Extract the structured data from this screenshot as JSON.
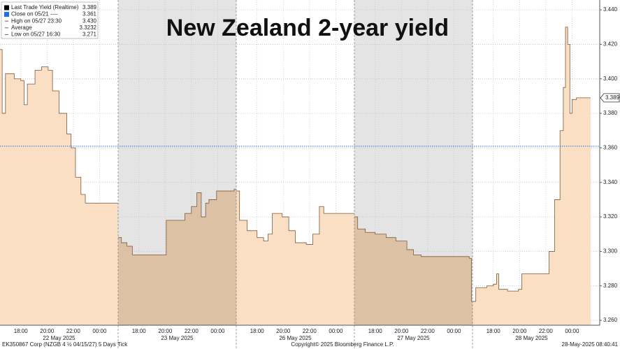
{
  "chart_data": {
    "type": "area",
    "title": "New Zealand 2-year yield",
    "legend": [
      {
        "name": "Last Trade Yield (Realtime)",
        "value": 3.389,
        "color": "#000000"
      },
      {
        "name": "Close on 05/21 ----",
        "value": 3.361,
        "color": "#1f6fe0"
      },
      {
        "name": "High on 05/27 23:30",
        "value": 3.43,
        "value_label": "3.430"
      },
      {
        "name": "Average",
        "value": 3.3232
      },
      {
        "name": "Low on 05/27 16:30",
        "value": 3.271
      }
    ],
    "ylim": [
      3.2572,
      3.4457
    ],
    "yticks": [
      {
        "value": 3.26,
        "label": "3.260"
      },
      {
        "value": 3.28,
        "label": "3.280"
      },
      {
        "value": 3.3,
        "label": "3.300"
      },
      {
        "value": 3.32,
        "label": "3.320"
      },
      {
        "value": 3.34,
        "label": "3.340"
      },
      {
        "value": 3.36,
        "label": "3.360"
      },
      {
        "value": 3.38,
        "label": "3.380"
      },
      {
        "value": 3.4,
        "label": "3.400"
      },
      {
        "value": 3.42,
        "label": "3.420"
      },
      {
        "value": 3.44,
        "label": "3.440"
      }
    ],
    "xlim": [
      "16:25",
      "01:25"
    ],
    "xticks": [
      "18:00",
      "20:00",
      "22:00",
      "00:00"
    ],
    "grid": true,
    "fill_color": "#fbdfc4",
    "shaded_fill_color": "#dcc1a4",
    "shade_color": "#e4e4e4",
    "line_color": "#7a5a3c",
    "days": [
      {
        "date": "22 May 2025",
        "shaded": false,
        "x": [
          "16:25",
          "16:35",
          "16:50",
          "17:30",
          "18:00",
          "18:15",
          "18:30",
          "19:05",
          "19:35",
          "20:05",
          "20:25",
          "20:55",
          "21:30",
          "21:50",
          "22:10",
          "22:35",
          "22:55",
          "01:20"
        ],
        "values": [
          3.417,
          3.38,
          3.403,
          3.4,
          3.399,
          3.385,
          3.397,
          3.405,
          3.407,
          3.405,
          3.393,
          3.38,
          3.368,
          3.36,
          3.343,
          3.333,
          3.328,
          3.328
        ]
      },
      {
        "date": "23 May 2025",
        "shaded": true,
        "x": [
          "16:25",
          "16:40",
          "17:05",
          "17:30",
          "19:55",
          "20:05",
          "20:40",
          "21:30",
          "22:00",
          "22:25",
          "22:45",
          "23:05",
          "23:20",
          "23:55",
          "01:15",
          "01:20"
        ],
        "values": [
          3.308,
          3.305,
          3.303,
          3.298,
          3.298,
          3.318,
          3.318,
          3.322,
          3.326,
          3.334,
          3.32,
          3.328,
          3.33,
          3.335,
          3.336,
          3.336
        ]
      },
      {
        "date": "26 May 2025",
        "shaded": false,
        "x": [
          "16:25",
          "16:40",
          "17:15",
          "18:00",
          "18:30",
          "18:50",
          "19:10",
          "19:55",
          "20:25",
          "20:55",
          "21:45",
          "22:15",
          "22:45",
          "23:05",
          "01:20"
        ],
        "values": [
          3.335,
          3.318,
          3.312,
          3.308,
          3.306,
          3.31,
          3.322,
          3.32,
          3.312,
          3.305,
          3.304,
          3.31,
          3.326,
          3.322,
          3.322
        ]
      },
      {
        "date": "27 May 2025",
        "shaded": true,
        "x": [
          "16:25",
          "16:40",
          "17:15",
          "18:00",
          "18:50",
          "19:35",
          "20:25",
          "20:55",
          "21:30",
          "01:10",
          "01:20"
        ],
        "values": [
          3.32,
          3.313,
          3.311,
          3.31,
          3.308,
          3.306,
          3.301,
          3.298,
          3.297,
          3.296,
          3.271
        ]
      },
      {
        "date": "28 May 2025",
        "shaded": false,
        "x": [
          "16:25",
          "16:40",
          "17:30",
          "18:00",
          "18:15",
          "18:25",
          "19:05",
          "19:55",
          "20:10",
          "22:00",
          "22:15",
          "22:40",
          "23:05",
          "23:20",
          "23:30",
          "23:40",
          "23:50",
          "00:00",
          "00:20",
          "01:15"
        ],
        "values": [
          3.271,
          3.279,
          3.28,
          3.281,
          3.287,
          3.278,
          3.277,
          3.278,
          3.287,
          3.287,
          3.3,
          3.33,
          3.37,
          3.395,
          3.43,
          3.42,
          3.38,
          3.388,
          3.389,
          3.389
        ]
      }
    ],
    "footer": {
      "left": "EK350867 Corp (NZGB 4 ½ 04/15/27) 5 Days  Tick",
      "center": "Copyright© 2025 Bloomberg Finance L.P.",
      "right": "28-May-2025 08:40:41"
    }
  }
}
